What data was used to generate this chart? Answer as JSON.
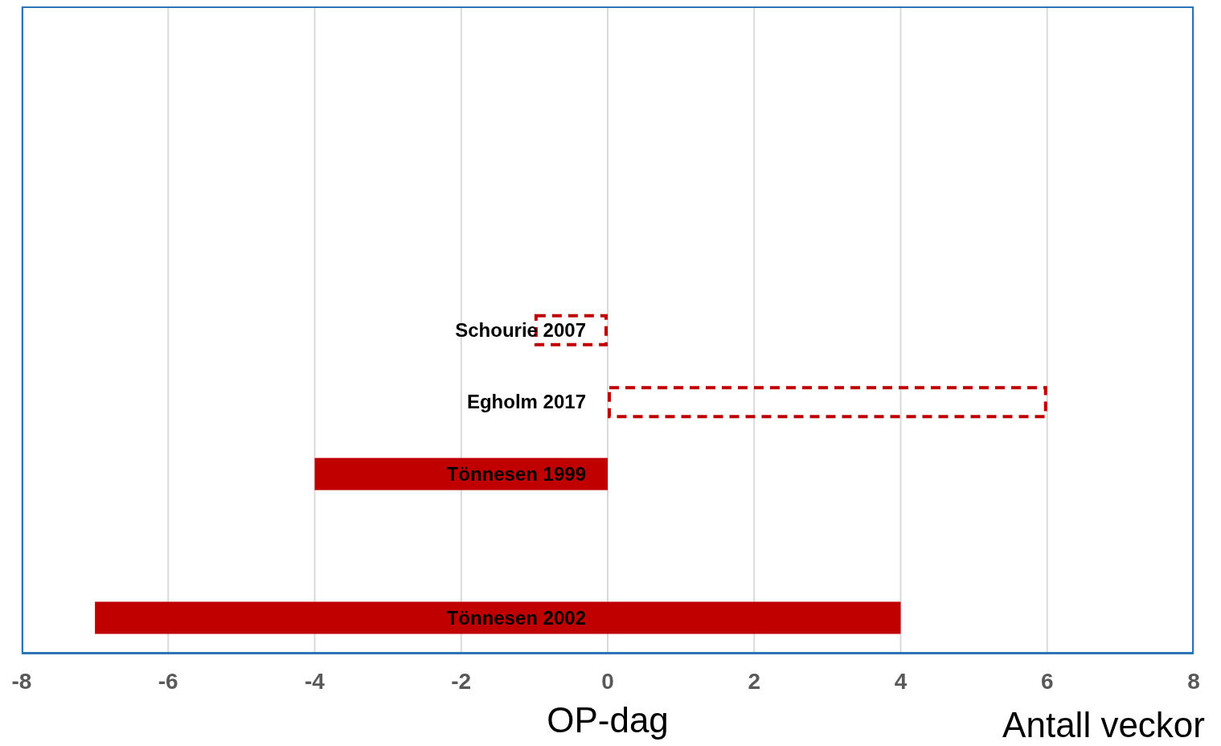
{
  "chart_data": {
    "type": "bar",
    "orientation": "horizontal",
    "categories": [
      null,
      null,
      null,
      null,
      "Schourie 2007",
      "Egholm 2017",
      "Tönnesen 1999",
      null,
      "Tönnesen 2002"
    ],
    "series": [
      {
        "color": "#c00000",
        "base": [
          null,
          null,
          null,
          null,
          null,
          null,
          -4,
          null,
          -7
        ],
        "values": [
          null,
          null,
          null,
          null,
          null,
          null,
          4,
          null,
          11
        ]
      },
      {
        "color": "#c00000",
        "line_style": "dashed",
        "base": [
          null,
          null,
          null,
          null,
          -1,
          0,
          null,
          null,
          null
        ],
        "values": [
          null,
          null,
          null,
          null,
          1,
          6,
          null,
          null,
          null
        ]
      }
    ],
    "xlim": [
      -8,
      8
    ],
    "xticks": [
      -8,
      -6,
      -4,
      -2,
      0,
      2,
      4,
      6,
      8
    ],
    "xlabel": "Antall veckor",
    "annotations": [
      "OP-dag"
    ],
    "grid": "x"
  }
}
